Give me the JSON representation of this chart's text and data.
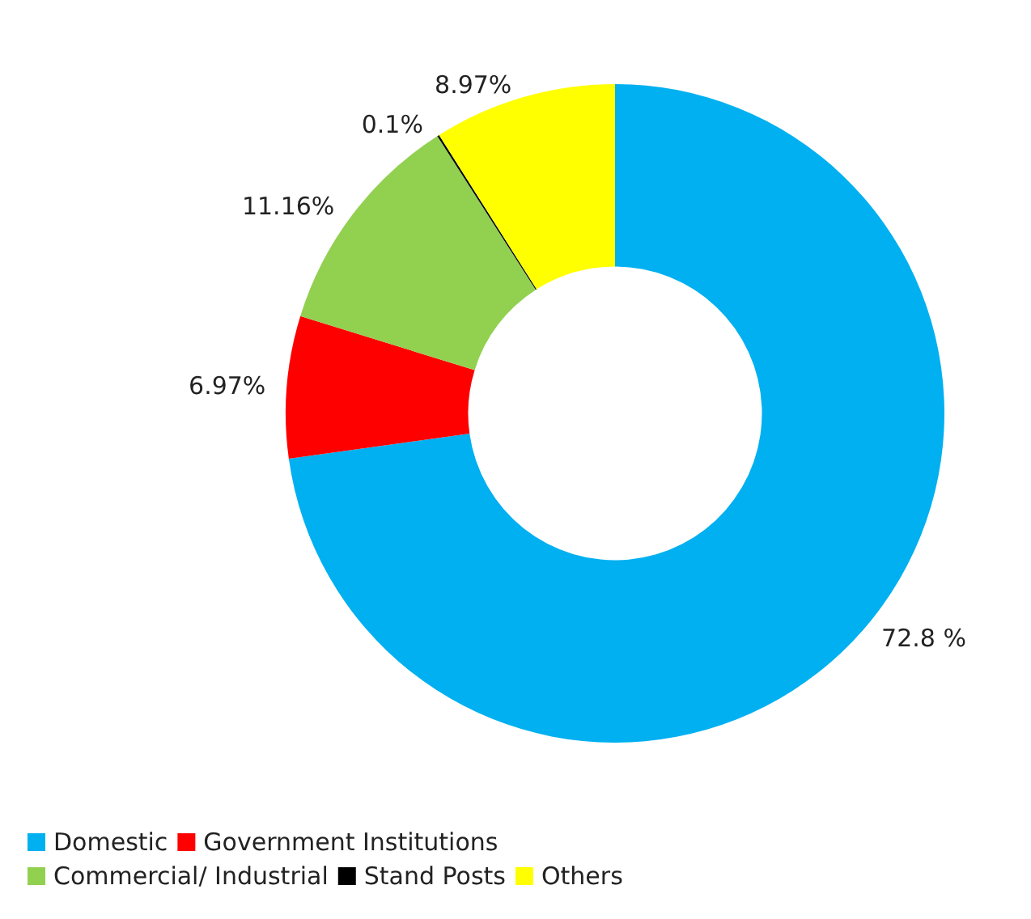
{
  "chart_data": {
    "type": "donut",
    "categories": [
      "Domestic",
      "Government Institutions",
      "Commercial/ Industrial",
      "Stand Posts",
      "Others"
    ],
    "values": [
      72.8,
      6.97,
      11.16,
      0.1,
      8.97
    ],
    "colors": [
      "#00b0f0",
      "#ff0000",
      "#92d050",
      "#000000",
      "#ffff00"
    ],
    "value_labels": [
      "72.8 %",
      "6.97%",
      "11.16%",
      "0.1%",
      "8.97%"
    ],
    "legend": "bottom left"
  }
}
